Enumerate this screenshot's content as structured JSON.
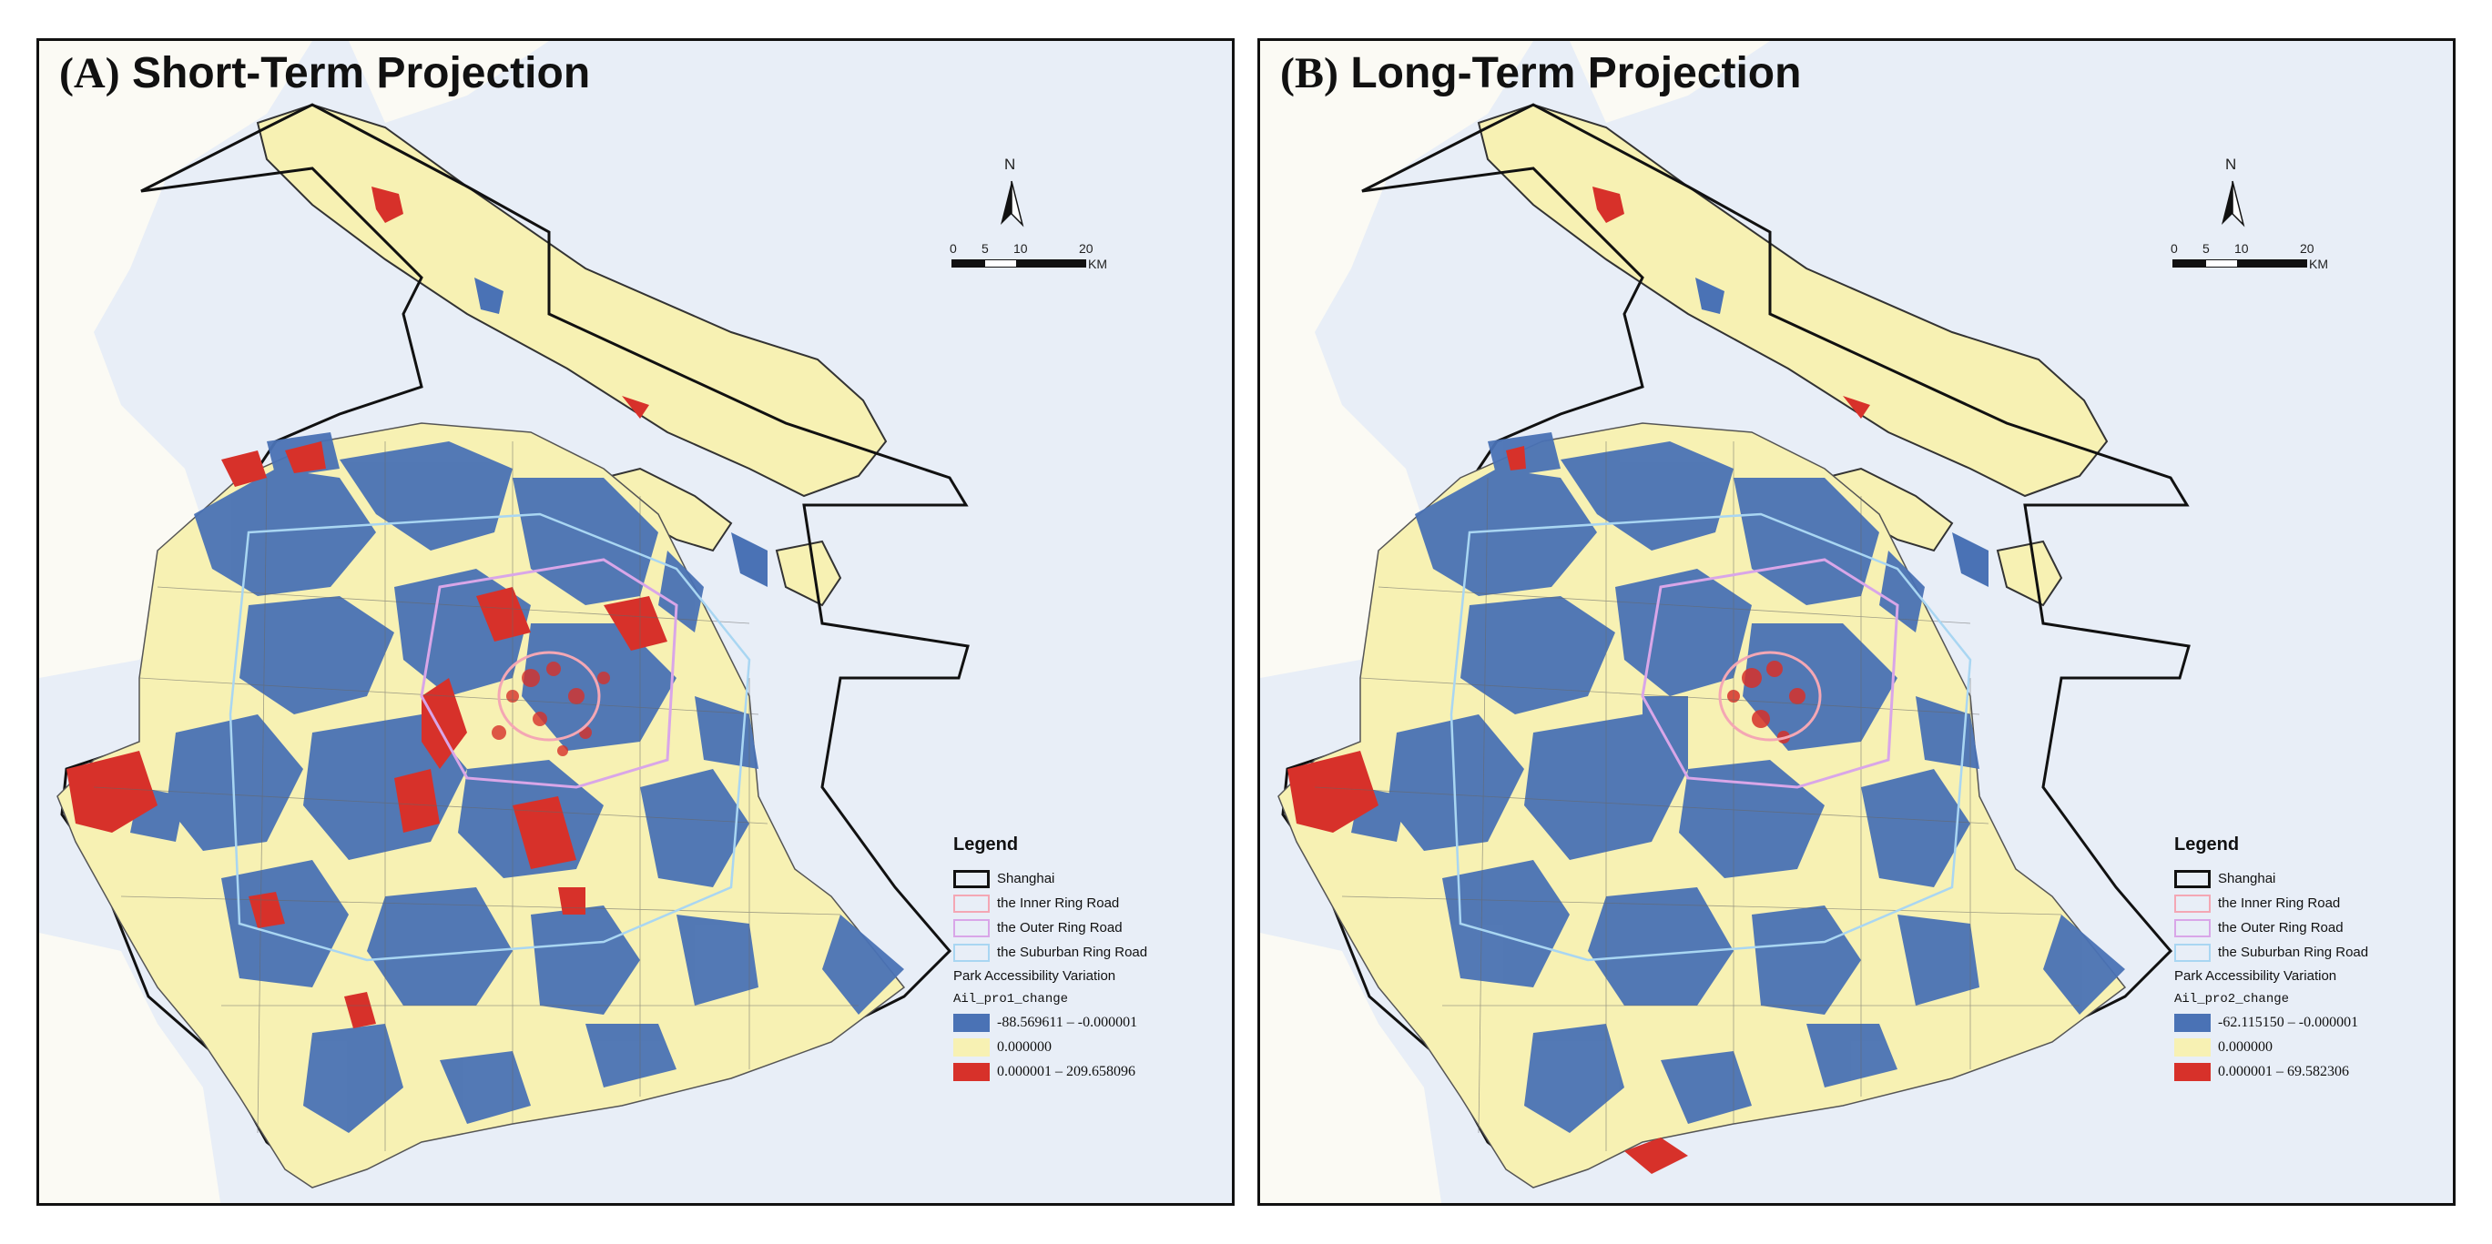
{
  "figure": {
    "panels": [
      {
        "id": "A",
        "letter": "(A)",
        "title": "Short-Term Projection",
        "field": "Ail_pro1_change",
        "classes": [
          {
            "label": "-88.569611 – -0.000001",
            "color": "#4a72b5"
          },
          {
            "label": "0.000000",
            "color": "#f7f1b3"
          },
          {
            "label": "0.000001 – 209.658096",
            "color": "#d7312a"
          }
        ]
      },
      {
        "id": "B",
        "letter": "(B)",
        "title": "Long-Term Projection",
        "field": "Ail_pro2_change",
        "classes": [
          {
            "label": "-62.115150 – -0.000001",
            "color": "#4a72b5"
          },
          {
            "label": "0.000000",
            "color": "#f7f1b3"
          },
          {
            "label": "0.000001 – 69.582306",
            "color": "#d7312a"
          }
        ]
      }
    ],
    "north_label": "N",
    "scale": {
      "ticks": [
        "0",
        "5",
        "10",
        "20"
      ],
      "unit": "KM"
    },
    "legend": {
      "title": "Legend",
      "layers": [
        {
          "label": "Shanghai",
          "color": "#111111"
        },
        {
          "label": "the Inner Ring Road",
          "color": "#f4a7b4"
        },
        {
          "label": "the Outer Ring Road",
          "color": "#d9a6e8"
        },
        {
          "label": "the Suburban Ring Road",
          "color": "#a9d6f2"
        }
      ],
      "variable_title": "Park Accessibility Variation"
    },
    "colors": {
      "water": "#e8eef7",
      "land_bg": "#fbfaf4",
      "zero": "#f7f1b3",
      "negative": "#4a72b5",
      "positive": "#d7312a"
    }
  }
}
